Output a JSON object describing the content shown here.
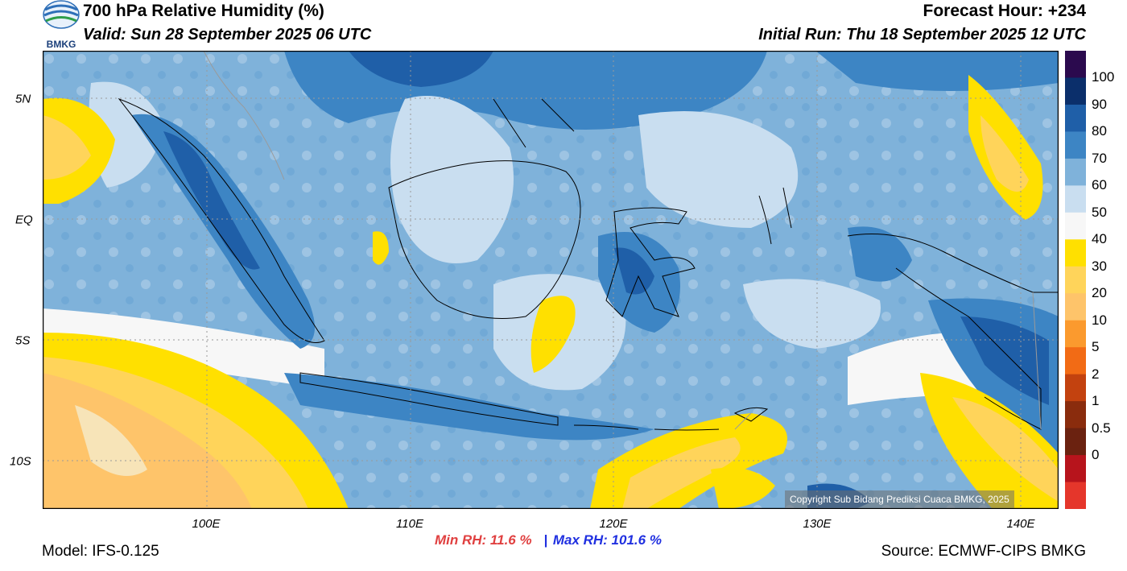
{
  "header": {
    "title": "700 hPa Relative Humidity (%)",
    "valid": "Valid: Sun 28 September 2025 06 UTC",
    "forecast_hour": "Forecast Hour: +234",
    "initial_run": "Initial Run: Thu 18 September 2025 12 UTC",
    "logo_text": "BMKG"
  },
  "axes": {
    "lat_labels": [
      "5N",
      "EQ",
      "5S",
      "10S"
    ],
    "lon_labels": [
      "100E",
      "110E",
      "120E",
      "130E",
      "140E"
    ]
  },
  "colorbar": {
    "labels": [
      "100",
      "90",
      "80",
      "70",
      "60",
      "50",
      "40",
      "30",
      "20",
      "10",
      "5",
      "2",
      "1",
      "0.5",
      "0"
    ],
    "colors": [
      "#2b0a4e",
      "#0b2f6b",
      "#1f5fa8",
      "#3d85c4",
      "#7fb2da",
      "#c9def0",
      "#f7f7f7",
      "#ffe000",
      "#ffd45a",
      "#fec46a",
      "#fb9a2e",
      "#f26b15",
      "#c3420f",
      "#8a2c0d",
      "#6b2210",
      "#b7141c",
      "#e5362b"
    ]
  },
  "stats": {
    "min": "Min RH:  11.6 %",
    "separator": "|",
    "max": "Max RH: 101.6 %"
  },
  "footer": {
    "model": "Model: IFS-0.125",
    "source": "Source: ECMWF-CIPS BMKG",
    "copyright": "Copyright Sub Bidang Prediksi Cuaca BMKG, 2025"
  },
  "colors": {
    "min_color": "#e04040",
    "max_color": "#2030e0"
  }
}
